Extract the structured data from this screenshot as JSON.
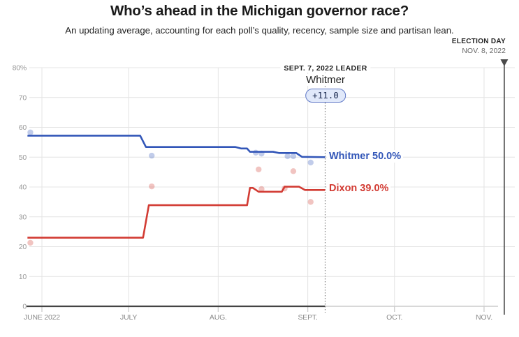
{
  "header": {
    "title": "Who’s ahead in the Michigan governor race?",
    "subtitle": "An updating average, accounting for each poll’s quality, recency, sample size and partisan lean."
  },
  "election_day": {
    "label": "ELECTION DAY",
    "date": "NOV. 8, 2022",
    "iso_date": "2022-11-08"
  },
  "leader_annotation": {
    "caption": "SEPT. 7, 2022 LEADER",
    "name": "Whitmer",
    "margin": "+11.0",
    "iso_date": "2022-09-07"
  },
  "chart_data": {
    "type": "line",
    "title": "Who’s ahead in the Michigan governor race?",
    "xlabel": "",
    "ylabel": "Percent",
    "ylim": [
      0,
      80
    ],
    "grid": true,
    "legend_position": "end-of-line labels",
    "x_axis": {
      "ticks": [
        "JUNE 2022",
        "JULY",
        "AUG.",
        "SEPT.",
        "OCT.",
        "NOV."
      ],
      "tick_dates": [
        "2022-06-01",
        "2022-07-01",
        "2022-08-01",
        "2022-09-01",
        "2022-10-01",
        "2022-11-01"
      ],
      "domain": [
        "2022-05-27",
        "2022-11-15"
      ]
    },
    "y_axis": {
      "ticks": [
        "80%",
        "70",
        "60",
        "50",
        "40",
        "30",
        "20",
        "10",
        "0"
      ],
      "values": [
        80,
        70,
        60,
        50,
        40,
        30,
        20,
        10,
        0
      ]
    },
    "series": [
      {
        "name": "Whitmer",
        "label": "Whitmer 50.0%",
        "final_value": 50.0,
        "color": "#3256b8",
        "line": [
          {
            "date": "2022-05-27",
            "pct": 57.2
          },
          {
            "date": "2022-07-05",
            "pct": 57.2
          },
          {
            "date": "2022-07-07",
            "pct": 53.4
          },
          {
            "date": "2022-08-07",
            "pct": 53.4
          },
          {
            "date": "2022-08-09",
            "pct": 52.9
          },
          {
            "date": "2022-08-11",
            "pct": 52.9
          },
          {
            "date": "2022-08-12",
            "pct": 51.8
          },
          {
            "date": "2022-08-20",
            "pct": 51.8
          },
          {
            "date": "2022-08-22",
            "pct": 51.4
          },
          {
            "date": "2022-08-28",
            "pct": 51.4
          },
          {
            "date": "2022-08-30",
            "pct": 50.1
          },
          {
            "date": "2022-09-07",
            "pct": 50.0
          }
        ],
        "polls": [
          {
            "date": "2022-05-28",
            "pct": 58.3
          },
          {
            "date": "2022-07-09",
            "pct": 50.5
          },
          {
            "date": "2022-08-14",
            "pct": 51.5
          },
          {
            "date": "2022-08-16",
            "pct": 51.2
          },
          {
            "date": "2022-08-25",
            "pct": 50.3
          },
          {
            "date": "2022-08-27",
            "pct": 50.3
          },
          {
            "date": "2022-09-02",
            "pct": 48.2
          }
        ]
      },
      {
        "name": "Dixon",
        "label": "Dixon 39.0%",
        "final_value": 39.0,
        "color": "#d23b33",
        "line": [
          {
            "date": "2022-05-27",
            "pct": 23.0
          },
          {
            "date": "2022-07-06",
            "pct": 23.0
          },
          {
            "date": "2022-07-08",
            "pct": 33.9
          },
          {
            "date": "2022-08-11",
            "pct": 33.9
          },
          {
            "date": "2022-08-12",
            "pct": 39.7
          },
          {
            "date": "2022-08-13",
            "pct": 39.7
          },
          {
            "date": "2022-08-15",
            "pct": 38.4
          },
          {
            "date": "2022-08-23",
            "pct": 38.4
          },
          {
            "date": "2022-08-24",
            "pct": 40.1
          },
          {
            "date": "2022-08-29",
            "pct": 40.1
          },
          {
            "date": "2022-08-31",
            "pct": 39.0
          },
          {
            "date": "2022-09-07",
            "pct": 39.0
          }
        ],
        "polls": [
          {
            "date": "2022-05-28",
            "pct": 21.3
          },
          {
            "date": "2022-07-09",
            "pct": 40.2
          },
          {
            "date": "2022-08-15",
            "pct": 45.9
          },
          {
            "date": "2022-08-16",
            "pct": 39.3
          },
          {
            "date": "2022-08-24",
            "pct": 39.5
          },
          {
            "date": "2022-08-27",
            "pct": 45.3
          },
          {
            "date": "2022-09-02",
            "pct": 35.0
          }
        ]
      }
    ],
    "annotations": {
      "leader_line_date": "2022-09-07",
      "election_line_date": "2022-11-08"
    }
  }
}
